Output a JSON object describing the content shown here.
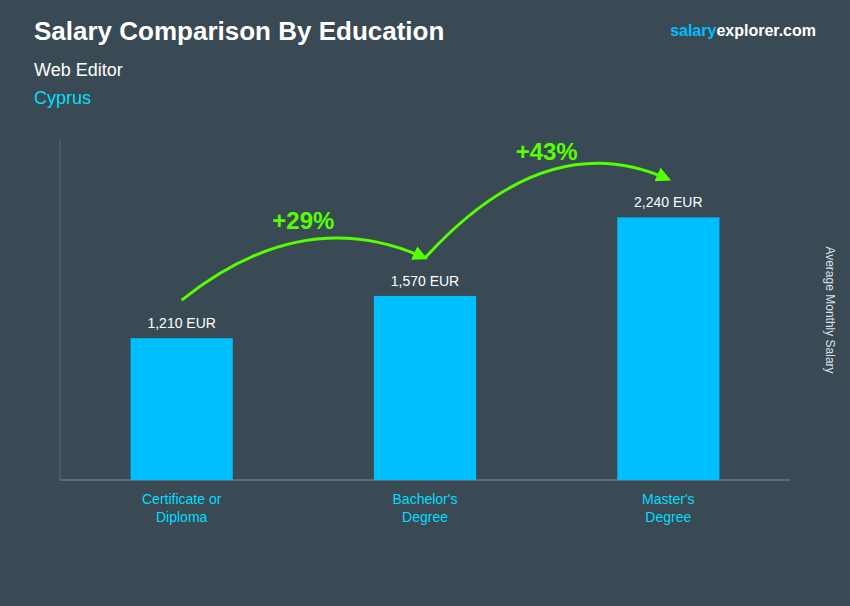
{
  "chart_data": {
    "type": "bar",
    "title": "Salary Comparison By Education",
    "subtitle": "Web Editor",
    "country": "Cyprus",
    "brand": [
      "salary",
      "explorer",
      ".com"
    ],
    "ylabel": "Average Monthly Salary",
    "categories": [
      "Certificate or\nDiploma",
      "Bachelor's\nDegree",
      "Master's\nDegree"
    ],
    "values": [
      1210,
      1570,
      2240
    ],
    "value_labels": [
      "1,210 EUR",
      "1,570 EUR",
      "2,240 EUR"
    ],
    "data_labels": true,
    "annotations": [
      "+29%",
      "+43%"
    ],
    "color": "#00BFFF",
    "ylim": [
      0,
      2900
    ],
    "tick_labels": false,
    "grid": false
  }
}
